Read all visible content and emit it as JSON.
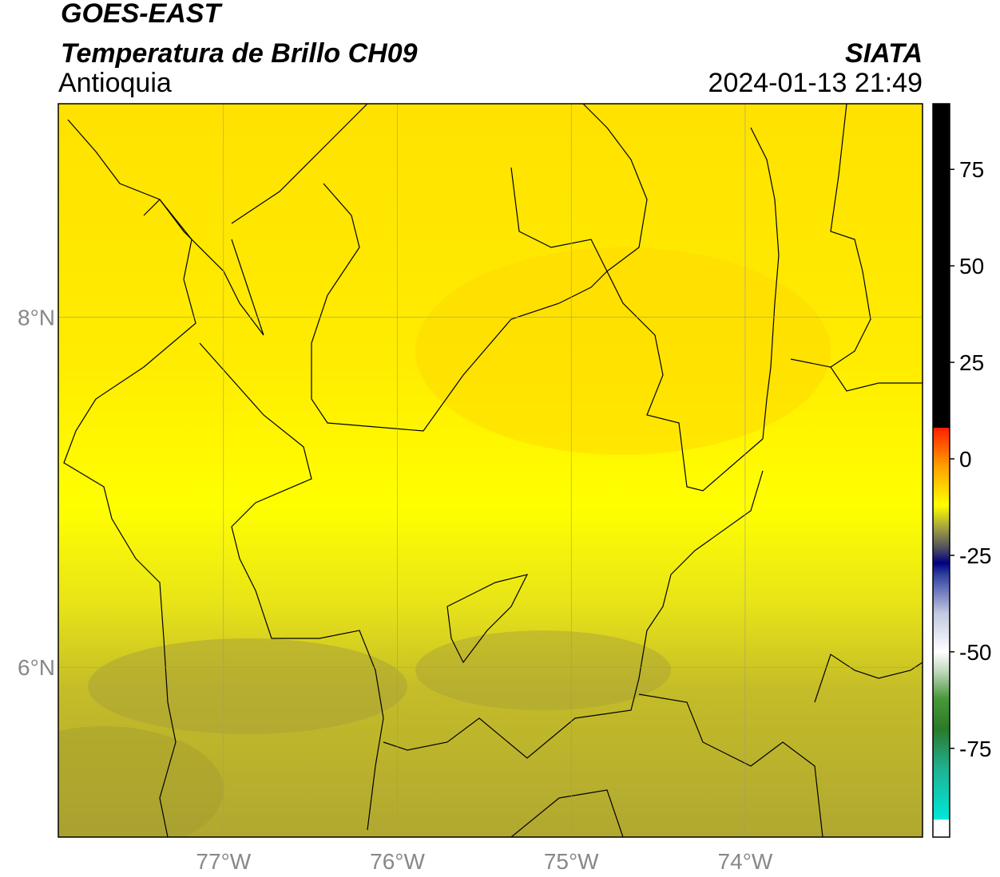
{
  "chart_data": {
    "type": "map",
    "title": "GOES-EAST",
    "subtitle": "Temperatura de Brillo CH09",
    "region": "Antioquia",
    "source": "SIATA",
    "timestamp": "2024-01-13 21:49",
    "xlim": [
      -77.95,
      -72.98
    ],
    "ylim": [
      5.03,
      9.22
    ],
    "xticks": [
      {
        "value": -77,
        "label": "77°W"
      },
      {
        "value": -76,
        "label": "76°W"
      },
      {
        "value": -75,
        "label": "75°W"
      },
      {
        "value": -74,
        "label": "74°W"
      }
    ],
    "yticks": [
      {
        "value": 6,
        "label": "6°N"
      },
      {
        "value": 8,
        "label": "8°N"
      }
    ],
    "grid": true,
    "colorbar": {
      "lim": [
        -98,
        92
      ],
      "ticks": [
        -75,
        -50,
        -25,
        0,
        25,
        50,
        75
      ],
      "stops": [
        {
          "value": -98,
          "color": "#ffffff"
        },
        {
          "value": -93.5,
          "color": "#ffffff"
        },
        {
          "value": -93.4,
          "color": "#00e8d8"
        },
        {
          "value": -80,
          "color": "#20b090"
        },
        {
          "value": -70,
          "color": "#2a7a2a"
        },
        {
          "value": -62,
          "color": "#4a9a3a"
        },
        {
          "value": -55,
          "color": "#c0d8c0"
        },
        {
          "value": -50,
          "color": "#ffffff"
        },
        {
          "value": -40,
          "color": "#c0c8e0"
        },
        {
          "value": -30,
          "color": "#3040a0"
        },
        {
          "value": -27,
          "color": "#000080"
        },
        {
          "value": -23,
          "color": "#505060"
        },
        {
          "value": -18,
          "color": "#a0a040"
        },
        {
          "value": -12,
          "color": "#ffff00"
        },
        {
          "value": -2,
          "color": "#ffa000"
        },
        {
          "value": 8,
          "color": "#ff2000"
        },
        {
          "value": 8.1,
          "color": "#000000"
        },
        {
          "value": 92,
          "color": "#000000"
        }
      ]
    }
  }
}
